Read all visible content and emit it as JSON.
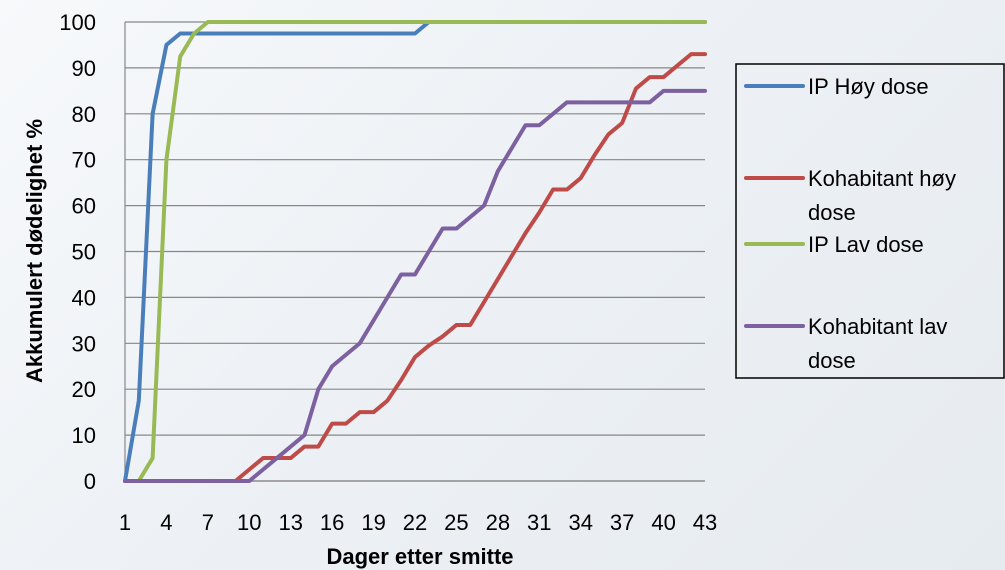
{
  "chart_data": {
    "type": "line",
    "xlabel": "Dager etter smitte",
    "ylabel": "Akkumulert dødelighet %",
    "xlim": [
      1,
      43
    ],
    "ylim": [
      0,
      100
    ],
    "x_ticks": [
      1,
      4,
      7,
      10,
      13,
      16,
      19,
      22,
      25,
      28,
      31,
      34,
      37,
      40,
      43
    ],
    "y_ticks": [
      0,
      10,
      20,
      30,
      40,
      50,
      60,
      70,
      80,
      90,
      100
    ],
    "grid": true,
    "legend_position": "right",
    "series": [
      {
        "name": "IP Høy dose",
        "legend_lines": [
          "IP Høy dose"
        ],
        "color": "#4a7ebb",
        "x": [
          1,
          2,
          3,
          4,
          5,
          6,
          7,
          8,
          9,
          10,
          11,
          12,
          13,
          14,
          15,
          16,
          17,
          18,
          19,
          20,
          21,
          22,
          23,
          24,
          25,
          26,
          27,
          28,
          29,
          30,
          31,
          32,
          33,
          34,
          35,
          36,
          37,
          38,
          39,
          40,
          41,
          42,
          43
        ],
        "y": [
          0,
          17.5,
          80,
          95,
          97.5,
          97.5,
          97.5,
          97.5,
          97.5,
          97.5,
          97.5,
          97.5,
          97.5,
          97.5,
          97.5,
          97.5,
          97.5,
          97.5,
          97.5,
          97.5,
          97.5,
          97.5,
          100,
          100,
          100,
          100,
          100,
          100,
          100,
          100,
          100,
          100,
          100,
          100,
          100,
          100,
          100,
          100,
          100,
          100,
          100,
          100,
          100
        ]
      },
      {
        "name": "Kohabitant høy dose",
        "legend_lines": [
          "Kohabitant høy",
          "dose"
        ],
        "color": "#be4b48",
        "x": [
          1,
          2,
          3,
          4,
          5,
          6,
          7,
          8,
          9,
          10,
          11,
          12,
          13,
          14,
          15,
          16,
          17,
          18,
          19,
          20,
          21,
          22,
          23,
          24,
          25,
          26,
          27,
          28,
          29,
          30,
          31,
          32,
          33,
          34,
          35,
          36,
          37,
          38,
          39,
          40,
          41,
          42,
          43
        ],
        "y": [
          0,
          0,
          0,
          0,
          0,
          0,
          0,
          0,
          0,
          2.5,
          5,
          5,
          5,
          7.5,
          7.5,
          12.5,
          12.5,
          15,
          15,
          17.5,
          22,
          27,
          29.5,
          31.5,
          34,
          34,
          39,
          44,
          49,
          54,
          58.5,
          63.5,
          63.5,
          66,
          71,
          75.5,
          78,
          85.5,
          88,
          88,
          90.5,
          93,
          93
        ]
      },
      {
        "name": "IP Lav dose",
        "legend_lines": [
          "IP Lav dose"
        ],
        "color": "#98b954",
        "x": [
          1,
          2,
          3,
          4,
          5,
          6,
          7,
          8,
          9,
          10,
          11,
          12,
          13,
          14,
          15,
          16,
          17,
          18,
          19,
          20,
          21,
          22,
          23,
          24,
          25,
          26,
          27,
          28,
          29,
          30,
          31,
          32,
          33,
          34,
          35,
          36,
          37,
          38,
          39,
          40,
          41,
          42,
          43
        ],
        "y": [
          0,
          0,
          5,
          70,
          92.5,
          97.5,
          100,
          100,
          100,
          100,
          100,
          100,
          100,
          100,
          100,
          100,
          100,
          100,
          100,
          100,
          100,
          100,
          100,
          100,
          100,
          100,
          100,
          100,
          100,
          100,
          100,
          100,
          100,
          100,
          100,
          100,
          100,
          100,
          100,
          100,
          100,
          100,
          100
        ]
      },
      {
        "name": "Kohabitant lav dose",
        "legend_lines": [
          "Kohabitant lav",
          "dose"
        ],
        "color": "#7d60a0",
        "x": [
          1,
          2,
          3,
          4,
          5,
          6,
          7,
          8,
          9,
          10,
          11,
          12,
          13,
          14,
          15,
          16,
          17,
          18,
          19,
          20,
          21,
          22,
          23,
          24,
          25,
          26,
          27,
          28,
          29,
          30,
          31,
          32,
          33,
          34,
          35,
          36,
          37,
          38,
          39,
          40,
          41,
          42,
          43
        ],
        "y": [
          0,
          0,
          0,
          0,
          0,
          0,
          0,
          0,
          0,
          0,
          2.5,
          5,
          7.5,
          10,
          20,
          25,
          27.5,
          30,
          35,
          40,
          45,
          45,
          50,
          55,
          55,
          57.5,
          60,
          67.5,
          72.5,
          77.5,
          77.5,
          80,
          82.5,
          82.5,
          82.5,
          82.5,
          82.5,
          82.5,
          82.5,
          85,
          85,
          85,
          85
        ]
      }
    ]
  }
}
